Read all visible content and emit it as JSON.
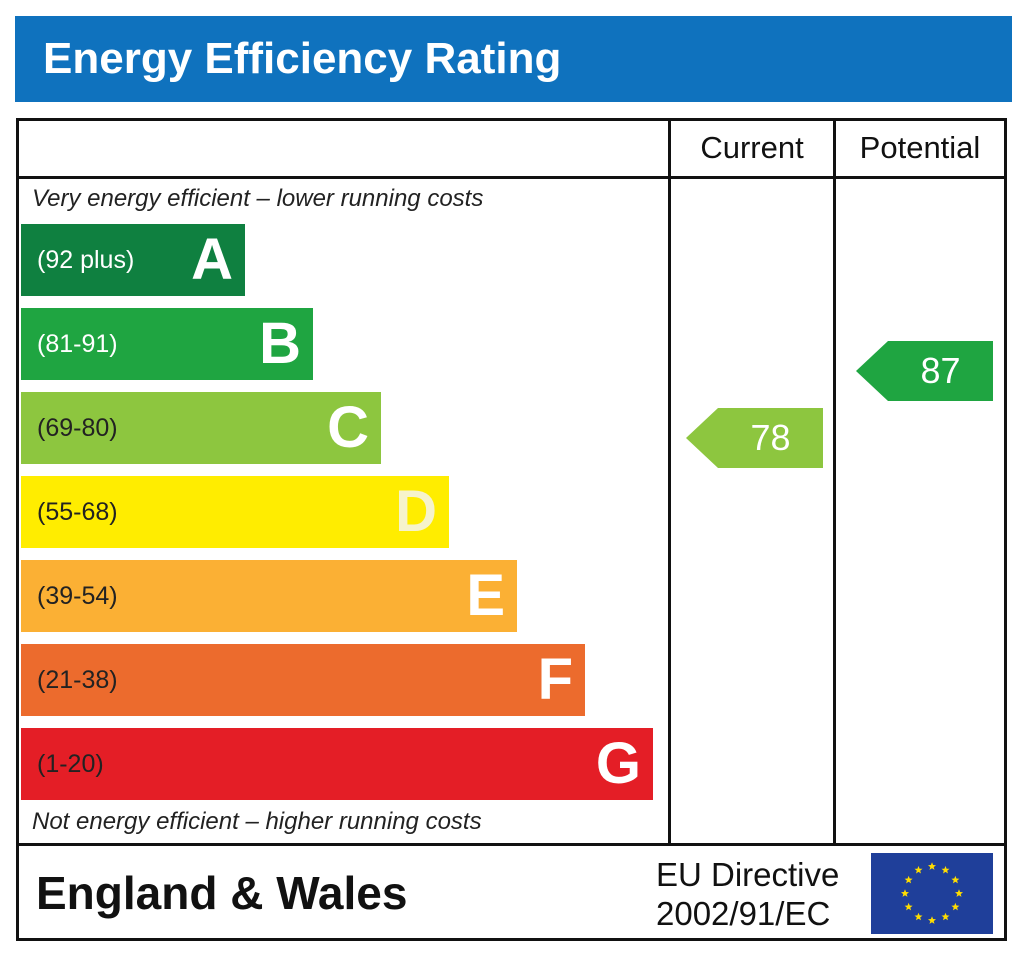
{
  "header": {
    "title": "Energy Efficiency Rating"
  },
  "columns": {
    "current": "Current",
    "potential": "Potential"
  },
  "notes": {
    "top": "Very energy efficient – lower running costs",
    "bottom": "Not energy efficient – higher running costs"
  },
  "footer": {
    "region": "England & Wales",
    "directive_line1": "EU Directive",
    "directive_line2": "2002/91/EC",
    "flag_icon": "eu-flag-icon"
  },
  "chart_data": {
    "type": "bar",
    "categories": [
      "A",
      "B",
      "C",
      "D",
      "E",
      "F",
      "G"
    ],
    "ranges": [
      "(92 plus)",
      "(81-91)",
      "(69-80)",
      "(55-68)",
      "(39-54)",
      "(21-38)",
      "(1-20)"
    ],
    "range_bounds": [
      [
        92,
        100
      ],
      [
        81,
        91
      ],
      [
        69,
        80
      ],
      [
        55,
        68
      ],
      [
        39,
        54
      ],
      [
        21,
        38
      ],
      [
        1,
        20
      ]
    ],
    "colors": [
      "#0f8040",
      "#1fa541",
      "#8dc63f",
      "#ffed00",
      "#fbb034",
      "#ec6b2d",
      "#e41e26"
    ],
    "range_text_colors": [
      "#ffffff",
      "#ffffff",
      "#222222",
      "#222222",
      "#222222",
      "#222222",
      "#222222"
    ],
    "letter_colors": [
      "#ffffff",
      "#ffffff",
      "#ffffff",
      "#f6f3cc",
      "#ffffff",
      "#ffffff",
      "#ffffff"
    ],
    "current": {
      "value": 78,
      "band": "C",
      "color": "#8dc63f"
    },
    "potential": {
      "value": 87,
      "band": "B",
      "color": "#1fa541"
    }
  }
}
